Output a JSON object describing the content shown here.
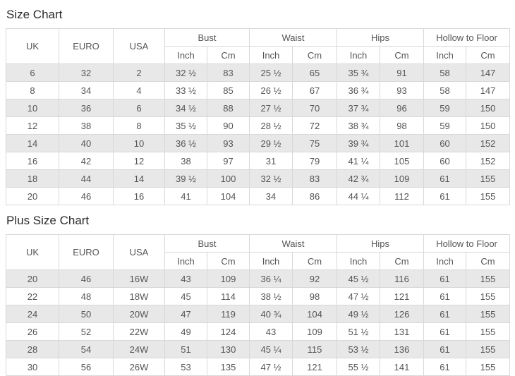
{
  "header": {
    "uk": "UK",
    "euro": "EURO",
    "usa": "USA",
    "bust": "Bust",
    "waist": "Waist",
    "hips": "Hips",
    "hollow_to_floor": "Hollow to Floor",
    "inch": "Inch",
    "cm": "Cm"
  },
  "stripe_color": "#e8e8e8",
  "border_color": "#d8d8d8",
  "chart_data": [
    {
      "type": "table",
      "title": "Size Chart",
      "columns": [
        "UK",
        "EURO",
        "USA",
        "Bust Inch",
        "Bust Cm",
        "Waist Inch",
        "Waist Cm",
        "Hips Inch",
        "Hips Cm",
        "Hollow to Floor Inch",
        "Hollow to Floor Cm"
      ],
      "rows": [
        [
          "6",
          "32",
          "2",
          "32 ½",
          "83",
          "25 ½",
          "65",
          "35 ¾",
          "91",
          "58",
          "147"
        ],
        [
          "8",
          "34",
          "4",
          "33 ½",
          "85",
          "26 ½",
          "67",
          "36 ¾",
          "93",
          "58",
          "147"
        ],
        [
          "10",
          "36",
          "6",
          "34 ½",
          "88",
          "27 ½",
          "70",
          "37 ¾",
          "96",
          "59",
          "150"
        ],
        [
          "12",
          "38",
          "8",
          "35 ½",
          "90",
          "28 ½",
          "72",
          "38 ¾",
          "98",
          "59",
          "150"
        ],
        [
          "14",
          "40",
          "10",
          "36 ½",
          "93",
          "29 ½",
          "75",
          "39 ¾",
          "101",
          "60",
          "152"
        ],
        [
          "16",
          "42",
          "12",
          "38",
          "97",
          "31",
          "79",
          "41 ¼",
          "105",
          "60",
          "152"
        ],
        [
          "18",
          "44",
          "14",
          "39 ½",
          "100",
          "32 ½",
          "83",
          "42 ¾",
          "109",
          "61",
          "155"
        ],
        [
          "20",
          "46",
          "16",
          "41",
          "104",
          "34",
          "86",
          "44 ¼",
          "112",
          "61",
          "155"
        ]
      ]
    },
    {
      "type": "table",
      "title": "Plus Size Chart",
      "columns": [
        "UK",
        "EURO",
        "USA",
        "Bust Inch",
        "Bust Cm",
        "Waist Inch",
        "Waist Cm",
        "Hips Inch",
        "Hips Cm",
        "Hollow to Floor Inch",
        "Hollow to Floor Cm"
      ],
      "rows": [
        [
          "20",
          "46",
          "16W",
          "43",
          "109",
          "36 ¼",
          "92",
          "45 ½",
          "116",
          "61",
          "155"
        ],
        [
          "22",
          "48",
          "18W",
          "45",
          "114",
          "38 ½",
          "98",
          "47 ½",
          "121",
          "61",
          "155"
        ],
        [
          "24",
          "50",
          "20W",
          "47",
          "119",
          "40 ¾",
          "104",
          "49 ½",
          "126",
          "61",
          "155"
        ],
        [
          "26",
          "52",
          "22W",
          "49",
          "124",
          "43",
          "109",
          "51 ½",
          "131",
          "61",
          "155"
        ],
        [
          "28",
          "54",
          "24W",
          "51",
          "130",
          "45 ¼",
          "115",
          "53 ½",
          "136",
          "61",
          "155"
        ],
        [
          "30",
          "56",
          "26W",
          "53",
          "135",
          "47 ½",
          "121",
          "55 ½",
          "141",
          "61",
          "155"
        ]
      ]
    }
  ]
}
